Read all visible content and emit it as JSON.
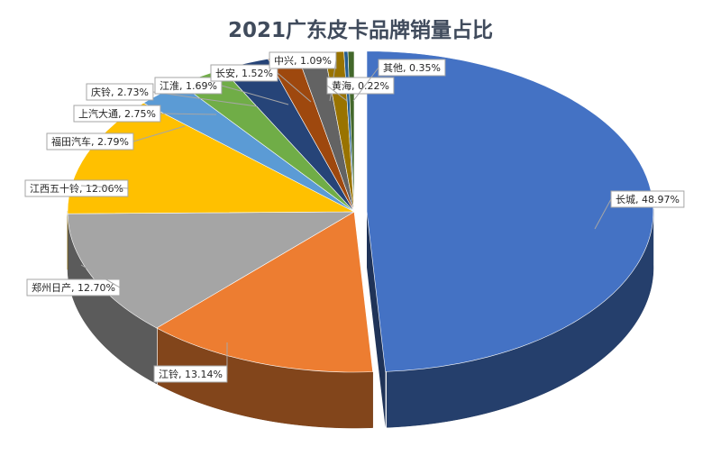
{
  "chart_data": {
    "type": "pie",
    "style": "3d-exploded-pie",
    "title": "2021广东皮卡品牌销量占比",
    "label_format": "{category}, {value}",
    "slices": [
      {
        "category": "长城",
        "value": 48.97,
        "label": "48.97%",
        "color": "#4472c4"
      },
      {
        "category": "江铃",
        "value": 13.14,
        "label": "13.14%",
        "color": "#ed7d31"
      },
      {
        "category": "郑州日产",
        "value": 12.7,
        "label": "12.70%",
        "color": "#a5a5a5"
      },
      {
        "category": "江西五十铃",
        "value": 12.06,
        "label": "12.06%",
        "color": "#ffc000"
      },
      {
        "category": "福田汽车",
        "value": 2.79,
        "label": "2.79%",
        "color": "#5b9bd5"
      },
      {
        "category": "上汽大通",
        "value": 2.75,
        "label": "2.75%",
        "color": "#70ad47"
      },
      {
        "category": "庆铃",
        "value": 2.73,
        "label": "2.73%",
        "color": "#264478"
      },
      {
        "category": "江淮",
        "value": 1.69,
        "label": "1.69%",
        "color": "#9e480e"
      },
      {
        "category": "长安",
        "value": 1.52,
        "label": "1.52%",
        "color": "#636363"
      },
      {
        "category": "中兴",
        "value": 1.09,
        "label": "1.09%",
        "color": "#997300"
      },
      {
        "category": "黄海",
        "value": 0.22,
        "label": "0.22%",
        "color": "#255e91"
      },
      {
        "category": "其他",
        "value": 0.35,
        "label": "0.35%",
        "color": "#43682b"
      }
    ]
  }
}
